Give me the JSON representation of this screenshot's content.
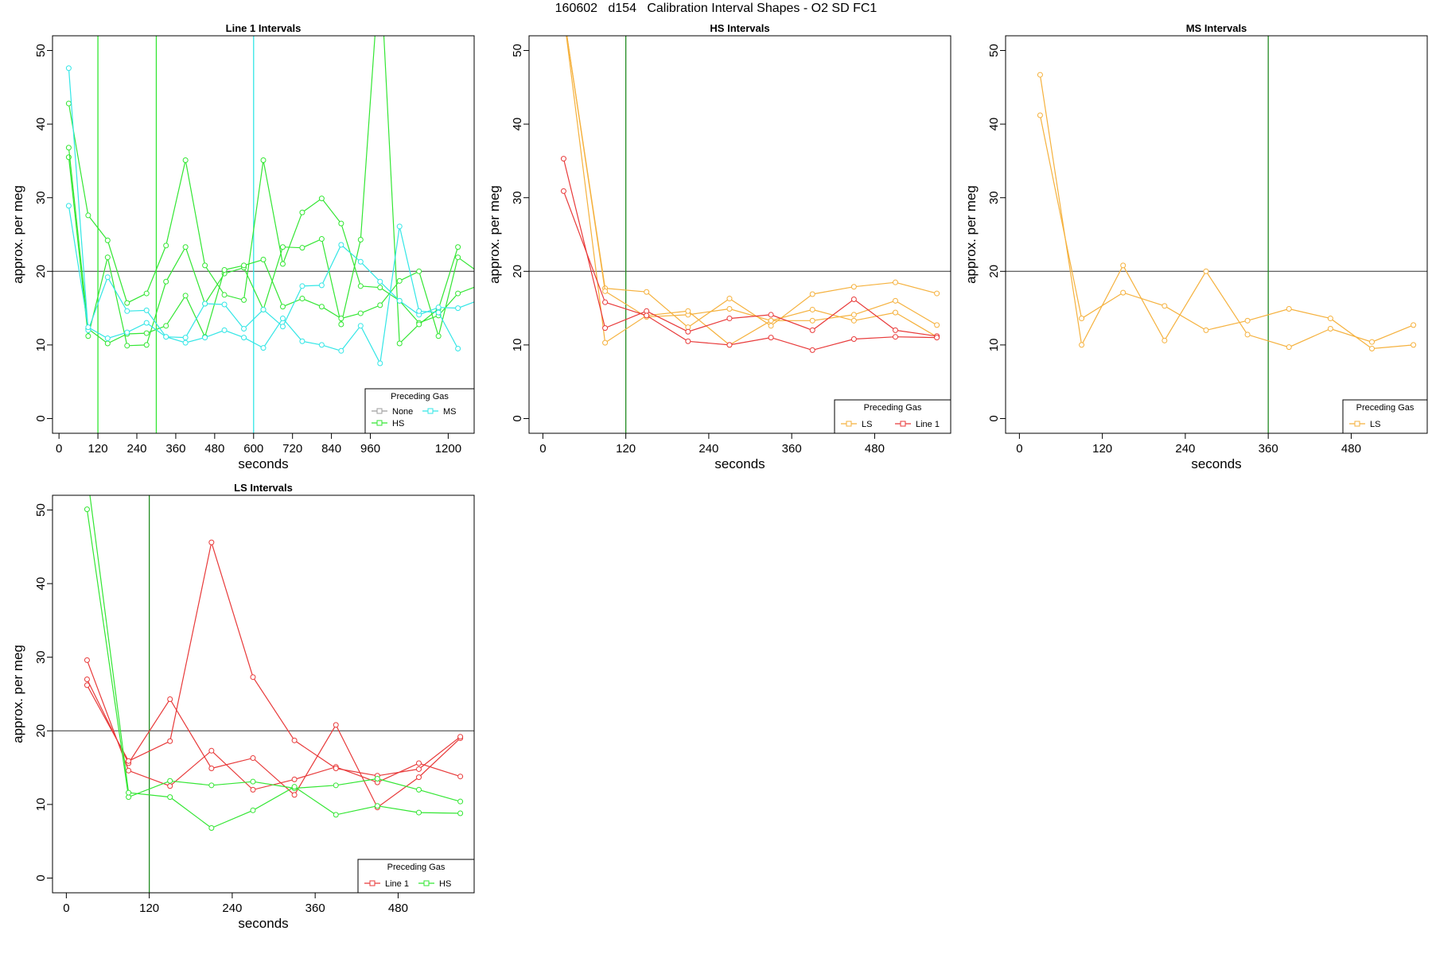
{
  "figure_title": "160602   d154   Calibration Interval Shapes - O2 SD FC1",
  "colors": {
    "None": "#9e9e9e",
    "HS": "#33e633",
    "MS": "#33e6e6",
    "LS": "#f5b13d",
    "Line 1": "#e83a3a",
    "axis": "#000000",
    "vline_green": "#228b22"
  },
  "chart_data": [
    {
      "type": "line",
      "title": "Line 1 Intervals",
      "xlabel": "seconds",
      "ylabel": "approx. per meg",
      "xlim": [
        -20,
        1280
      ],
      "ylim": [
        -2,
        52
      ],
      "xticks": [
        0,
        120,
        240,
        360,
        480,
        600,
        720,
        840,
        960,
        1200
      ],
      "yticks": [
        0,
        10,
        20,
        30,
        40,
        50
      ],
      "hline": 20,
      "vlines": [
        {
          "x": 120,
          "color": "HS"
        },
        {
          "x": 300,
          "color": "HS"
        },
        {
          "x": 600,
          "color": "MS"
        }
      ],
      "legend": {
        "title": "Preceding Gas",
        "position": "bottom-right",
        "entries": [
          "None",
          "MS",
          "HS"
        ]
      },
      "series": [
        {
          "color": "HS",
          "x": [
            30,
            90,
            150,
            210,
            270,
            330,
            390,
            450,
            510,
            570,
            630,
            690,
            750,
            810,
            870,
            930,
            990,
            1050,
            1110,
            1170,
            1230,
            1290
          ],
          "y": [
            42.8,
            27.6,
            24.2,
            15.7,
            17.0,
            23.5,
            35.1,
            20.8,
            16.8,
            16.1,
            35.1,
            21.0,
            28.0,
            29.9,
            26.5,
            18.0,
            17.8,
            16.0,
            13.0,
            14.0,
            17.0,
            18.0
          ]
        },
        {
          "color": "HS",
          "x": [
            30,
            90,
            150,
            210,
            270,
            330,
            390,
            450,
            510,
            570,
            630,
            690,
            750,
            810,
            870,
            930,
            990,
            1050,
            1110,
            1170,
            1230
          ],
          "y": [
            35.5,
            11.2,
            21.9,
            9.9,
            10.0,
            18.6,
            23.3,
            15.6,
            19.7,
            20.5,
            14.8,
            23.3,
            23.2,
            24.4,
            12.8,
            24.3,
            62.0,
            10.2,
            12.8,
            14.9,
            23.3
          ]
        },
        {
          "color": "HS",
          "x": [
            30,
            90,
            150,
            210,
            270,
            330,
            390,
            450,
            510,
            570,
            630,
            690,
            750,
            810,
            870,
            930,
            990,
            1050,
            1110,
            1170,
            1230,
            1290
          ],
          "y": [
            36.8,
            12.2,
            10.2,
            11.5,
            11.6,
            12.6,
            16.7,
            11.1,
            20.2,
            20.8,
            21.6,
            15.2,
            16.3,
            15.2,
            13.6,
            14.3,
            15.4,
            18.7,
            20.0,
            11.2,
            21.9,
            20.0
          ]
        },
        {
          "color": "MS",
          "x": [
            30,
            90,
            150,
            210,
            270,
            330,
            390,
            450,
            510,
            570,
            630,
            690,
            750,
            810,
            870,
            930,
            990,
            1050,
            1110,
            1170,
            1230,
            1290
          ],
          "y": [
            47.6,
            12.0,
            19.2,
            14.6,
            14.7,
            11.1,
            11.0,
            15.6,
            15.5,
            12.2,
            14.8,
            12.5,
            18.0,
            18.1,
            23.6,
            21.3,
            18.6,
            16.0,
            14.1,
            15.1,
            15.0,
            16.0
          ]
        },
        {
          "color": "MS",
          "x": [
            30,
            90,
            150,
            210,
            270,
            330,
            390,
            450,
            510,
            570,
            630,
            690,
            750,
            810,
            870,
            930,
            990,
            1050,
            1110,
            1170,
            1230
          ],
          "y": [
            28.9,
            12.4,
            10.9,
            11.7,
            13.0,
            11.1,
            10.3,
            11.0,
            12.0,
            11.0,
            9.6,
            13.6,
            10.5,
            10.0,
            9.2,
            12.6,
            7.5,
            26.1,
            14.6,
            14.4,
            9.5
          ]
        }
      ]
    },
    {
      "type": "line",
      "title": "HS Intervals",
      "xlabel": "seconds",
      "ylabel": "approx. per meg",
      "xlim": [
        -20,
        590
      ],
      "ylim": [
        -2,
        52
      ],
      "xticks": [
        0,
        120,
        240,
        360,
        480
      ],
      "yticks": [
        0,
        10,
        20,
        30,
        40,
        50
      ],
      "hline": 20,
      "vlines": [
        {
          "x": 120,
          "color": "vline_green"
        }
      ],
      "legend": {
        "title": "Preceding Gas",
        "position": "bottom-right",
        "entries": [
          "LS",
          "Line 1"
        ]
      },
      "series": [
        {
          "color": "LS",
          "x": [
            30,
            90,
            150,
            210,
            270,
            330,
            390,
            450,
            510,
            570
          ],
          "y": [
            55.0,
            17.7,
            17.2,
            12.4,
            16.3,
            12.6,
            16.9,
            17.9,
            18.5,
            17.0
          ]
        },
        {
          "color": "LS",
          "x": [
            30,
            90,
            150,
            210,
            270,
            330,
            390,
            450,
            510,
            570
          ],
          "y": [
            55.0,
            17.3,
            13.8,
            14.1,
            14.9,
            13.3,
            13.3,
            14.1,
            16.0,
            12.7
          ]
        },
        {
          "color": "LS",
          "x": [
            30,
            90,
            150,
            210,
            270,
            330,
            390,
            450,
            510,
            570
          ],
          "y": [
            55.0,
            10.3,
            14.0,
            14.6,
            10.0,
            13.3,
            14.8,
            13.3,
            14.4,
            11.1
          ]
        },
        {
          "color": "Line 1",
          "x": [
            30,
            90,
            150,
            210,
            270,
            330,
            390,
            450,
            510,
            570
          ],
          "y": [
            35.3,
            12.3,
            14.6,
            11.8,
            13.6,
            14.1,
            12.0,
            16.2,
            12.0,
            11.2
          ]
        },
        {
          "color": "Line 1",
          "x": [
            30,
            90,
            150,
            210,
            270,
            330,
            390,
            450,
            510,
            570
          ],
          "y": [
            30.9,
            15.8,
            14.0,
            10.5,
            10.0,
            11.0,
            9.3,
            10.8,
            11.1,
            11.0
          ]
        }
      ]
    },
    {
      "type": "line",
      "title": "MS Intervals",
      "xlabel": "seconds",
      "ylabel": "approx. per meg",
      "xlim": [
        -20,
        590
      ],
      "ylim": [
        -2,
        52
      ],
      "xticks": [
        0,
        120,
        240,
        360,
        480
      ],
      "yticks": [
        0,
        10,
        20,
        30,
        40,
        50
      ],
      "hline": 20,
      "vlines": [
        {
          "x": 360,
          "color": "vline_green"
        }
      ],
      "legend": {
        "title": "Preceding Gas",
        "position": "bottom-right",
        "entries": [
          "LS"
        ]
      },
      "series": [
        {
          "color": "LS",
          "x": [
            30,
            90,
            150,
            210,
            270,
            330,
            390,
            450,
            510,
            570
          ],
          "y": [
            46.7,
            10.0,
            20.8,
            10.6,
            20.0,
            11.4,
            9.7,
            12.2,
            10.4,
            12.7
          ]
        },
        {
          "color": "LS",
          "x": [
            30,
            90,
            150,
            210,
            270,
            330,
            390,
            450,
            510,
            570
          ],
          "y": [
            41.2,
            13.6,
            17.1,
            15.3,
            12.0,
            13.3,
            14.9,
            13.6,
            9.5,
            10.0
          ]
        }
      ]
    },
    {
      "type": "line",
      "title": "LS Intervals",
      "xlabel": "seconds",
      "ylabel": "approx. per meg",
      "xlim": [
        -20,
        590
      ],
      "ylim": [
        -2,
        52
      ],
      "xticks": [
        0,
        120,
        240,
        360,
        480
      ],
      "yticks": [
        0,
        10,
        20,
        30,
        40,
        50
      ],
      "hline": 20,
      "vlines": [
        {
          "x": 120,
          "color": "vline_green"
        }
      ],
      "legend": {
        "title": "Preceding Gas",
        "position": "bottom-right",
        "entries": [
          "Line 1",
          "HS"
        ]
      },
      "series": [
        {
          "color": "Line 1",
          "x": [
            30,
            90,
            150,
            210,
            270,
            330,
            390,
            450,
            510,
            570
          ],
          "y": [
            29.6,
            14.6,
            12.5,
            17.3,
            12.0,
            13.4,
            15.1,
            13.0,
            15.6,
            13.8
          ]
        },
        {
          "color": "Line 1",
          "x": [
            30,
            90,
            150,
            210,
            270,
            330,
            390,
            450,
            510,
            570
          ],
          "y": [
            27.0,
            15.6,
            24.3,
            14.9,
            16.3,
            11.3,
            20.8,
            9.6,
            13.7,
            19.0
          ]
        },
        {
          "color": "Line 1",
          "x": [
            30,
            90,
            150,
            210,
            270,
            330,
            390,
            450,
            510,
            570
          ],
          "y": [
            26.2,
            15.9,
            18.6,
            45.6,
            27.3,
            18.7,
            14.9,
            13.9,
            14.8,
            19.2
          ]
        },
        {
          "color": "HS",
          "x": [
            30,
            90,
            150,
            210,
            270,
            330,
            390,
            450,
            510,
            570
          ],
          "y": [
            50.1,
            11.0,
            13.2,
            12.6,
            13.1,
            12.2,
            12.6,
            13.5,
            12.0,
            10.4
          ]
        },
        {
          "color": "HS",
          "x": [
            30,
            90,
            150,
            210,
            270,
            330,
            390,
            450,
            510,
            570
          ],
          "y": [
            55.0,
            11.6,
            11.0,
            6.8,
            9.2,
            12.4,
            8.6,
            9.8,
            8.9,
            8.8
          ]
        }
      ]
    }
  ]
}
